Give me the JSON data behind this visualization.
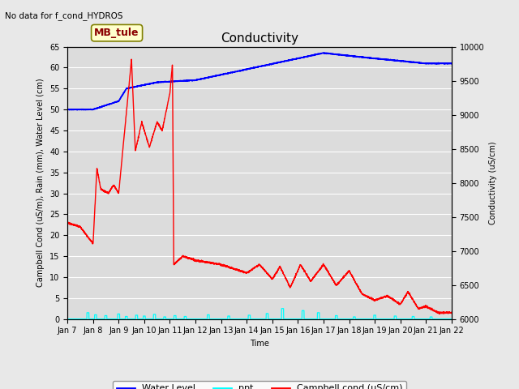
{
  "title": "Conductivity",
  "no_data_label": "No data for f_cond_HYDROS",
  "station_label": "MB_tule",
  "xlabel": "Time",
  "ylabel_left": "Campbell Cond (uS/m), Rain (mm), Water Level (cm)",
  "ylabel_right": "Conductivity (uS/cm)",
  "ylim_left": [
    0,
    65
  ],
  "ylim_right": [
    6000,
    10000
  ],
  "bg_color": "#e8e8e8",
  "plot_bg_color": "#dcdcdc",
  "x_tick_labels": [
    "Jan 7",
    "Jan 8",
    "Jan 9",
    "Jan 10",
    "Jan 11",
    "Jan 12",
    "Jan 13",
    "Jan 14",
    "Jan 15",
    "Jan 16",
    "Jan 17",
    "Jan 18",
    "Jan 19",
    "Jan 20",
    "Jan 21",
    "Jan 22"
  ],
  "yticks_left": [
    0,
    5,
    10,
    15,
    20,
    25,
    30,
    35,
    40,
    45,
    50,
    55,
    60,
    65
  ],
  "yticks_right": [
    6000,
    6500,
    7000,
    7500,
    8000,
    8500,
    9000,
    9500,
    10000
  ],
  "title_fontsize": 11,
  "label_fontsize": 7,
  "tick_fontsize": 7,
  "station_facecolor": "#ffffcc",
  "station_edgecolor": "#808000",
  "station_textcolor": "#8b0000"
}
